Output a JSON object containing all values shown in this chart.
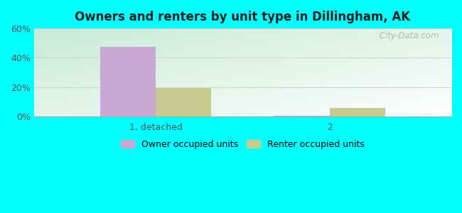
{
  "title": "Owners and renters by unit type in Dillingham, AK",
  "categories": [
    "1, detached",
    "2"
  ],
  "owner_values": [
    47.5,
    0.8
  ],
  "renter_values": [
    19.5,
    6.0
  ],
  "owner_color": "#c9a8d4",
  "renter_color": "#c5cc8e",
  "ylim": [
    0,
    60
  ],
  "yticks": [
    0,
    20,
    40,
    60
  ],
  "ytick_labels": [
    "0%",
    "20%",
    "40%",
    "60%"
  ],
  "outer_bg": "#00ffff",
  "bar_width": 0.32,
  "legend_labels": [
    "Owner occupied units",
    "Renter occupied units"
  ],
  "watermark": "  City-Data.com",
  "grad_top_left": "#c5e8d8",
  "grad_bottom_right": "#f8fff8"
}
